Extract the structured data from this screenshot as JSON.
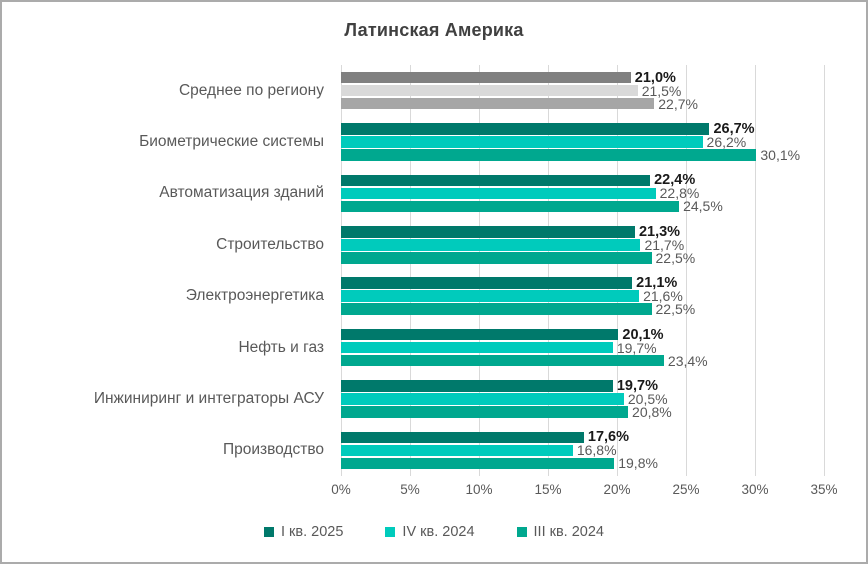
{
  "frame": {
    "border_color": "#ababab",
    "background": "#ffffff"
  },
  "chart_data": {
    "type": "bar",
    "orientation": "horizontal",
    "title": "Латинская Америка",
    "title_color": "#404040",
    "categories": [
      "Среднее по региону",
      "Биометрические системы",
      "Автоматизация зданий",
      "Строительство",
      "Электроэнергетика",
      "Нефть и газ",
      "Инжиниринг и интеграторы АСУ",
      "Производство"
    ],
    "series": [
      {
        "name": "I кв. 2025",
        "color": "#00796b",
        "values": [
          21.0,
          26.7,
          22.4,
          21.3,
          21.1,
          20.1,
          19.7,
          17.6
        ],
        "labels": [
          "21,0%",
          "26,7%",
          "22,4%",
          "21,3%",
          "21,1%",
          "20,1%",
          "19,7%",
          "17,6%"
        ],
        "label_bold": true
      },
      {
        "name": "IV кв. 2024",
        "color": "#00cbbc",
        "values": [
          21.5,
          26.2,
          22.8,
          21.7,
          21.6,
          19.7,
          20.5,
          16.8
        ],
        "labels": [
          "21,5%",
          "26,2%",
          "22,8%",
          "21,7%",
          "21,6%",
          "19,7%",
          "20,5%",
          "16,8%"
        ],
        "label_bold": false
      },
      {
        "name": "III кв. 2024",
        "color": "#00a88f",
        "values": [
          22.7,
          30.1,
          24.5,
          22.5,
          22.5,
          23.4,
          20.8,
          19.8
        ],
        "labels": [
          "22,7%",
          "30,1%",
          "24,5%",
          "22,5%",
          "22,5%",
          "23,4%",
          "20,8%",
          "19,8%"
        ],
        "label_bold": false
      }
    ],
    "category_color_overrides": {
      "0": [
        "#808080",
        "#d9d9d9",
        "#a6a6a6"
      ]
    },
    "xlim": [
      0,
      35
    ],
    "x_ticks": [
      "0%",
      "5%",
      "10%",
      "15%",
      "20%",
      "25%",
      "30%",
      "35%"
    ],
    "x_tick_values": [
      0,
      5,
      10,
      15,
      20,
      25,
      30,
      35
    ],
    "grid": true,
    "gridline_color": "#d9d9d9",
    "legend_position": "bottom",
    "label_color_primary": "#1a1a1a",
    "label_color_secondary": "#595959"
  }
}
